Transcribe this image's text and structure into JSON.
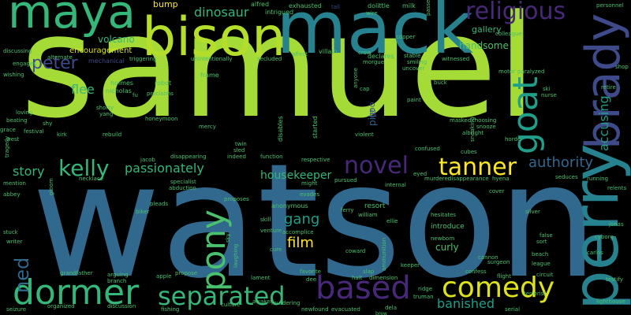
{
  "palette": {
    "lime": "#a5db36",
    "yellowgreen": "#b5de2b",
    "green": "#35b779",
    "mint": "#4ac16d",
    "teal": "#1f9e89",
    "tealblue": "#26828e",
    "blue": "#31688e",
    "indigo": "#3e4a89",
    "purple": "#482878",
    "violet": "#440154",
    "yellow": "#fde725",
    "paleyellow": "#dde318"
  },
  "words": [
    {
      "text": "samuel"
    },
    {
      "text": "watson"
    },
    {
      "text": "mack"
    },
    {
      "text": "bison"
    },
    {
      "text": "maya"
    },
    {
      "text": "perry"
    },
    {
      "text": "brady"
    },
    {
      "text": "dormer"
    },
    {
      "text": "based"
    },
    {
      "text": "comedy"
    },
    {
      "text": "separated"
    },
    {
      "text": "religious"
    },
    {
      "text": "goat"
    },
    {
      "text": "pony"
    },
    {
      "text": "novel"
    },
    {
      "text": "tanner"
    },
    {
      "text": "kelly"
    },
    {
      "text": "passionately"
    },
    {
      "text": "peter"
    },
    {
      "text": "authority"
    },
    {
      "text": "ned"
    },
    {
      "text": "story"
    },
    {
      "text": "housekeeper"
    },
    {
      "text": "gang"
    },
    {
      "text": "film"
    },
    {
      "text": "banished"
    },
    {
      "text": "accusing"
    },
    {
      "text": "dinosaur"
    },
    {
      "text": "flee"
    },
    {
      "text": "volcano"
    },
    {
      "text": "pile"
    },
    {
      "text": "gallery"
    },
    {
      "text": "handsome"
    },
    {
      "text": "encouragement"
    },
    {
      "text": "curly"
    },
    {
      "text": "introduce"
    },
    {
      "text": "bump"
    },
    {
      "text": "anonymous"
    },
    {
      "text": "resort"
    },
    {
      "text": "mechanical"
    },
    {
      "text": "holmes"
    },
    {
      "text": "nicholas"
    },
    {
      "text": "robot"
    },
    {
      "text": "frame"
    },
    {
      "text": "alfred"
    },
    {
      "text": "exhausted"
    },
    {
      "text": "tall"
    },
    {
      "text": "dolittle"
    },
    {
      "text": "milk"
    },
    {
      "text": "intrigued"
    },
    {
      "text": "wire"
    },
    {
      "text": "copper"
    },
    {
      "text": "colleague"
    },
    {
      "text": "personnel"
    },
    {
      "text": "stable"
    },
    {
      "text": "declares"
    },
    {
      "text": "villain"
    },
    {
      "text": "affect"
    },
    {
      "text": "secluded"
    },
    {
      "text": "triggering"
    },
    {
      "text": "unintentionally"
    },
    {
      "text": "discussing"
    },
    {
      "text": "engages"
    },
    {
      "text": "alternate"
    },
    {
      "text": "wishing"
    },
    {
      "text": "witnessed"
    },
    {
      "text": "uncover"
    },
    {
      "text": "motor"
    },
    {
      "text": "paralyzed"
    },
    {
      "text": "retire"
    },
    {
      "text": "shop"
    },
    {
      "text": "ski"
    },
    {
      "text": "buck"
    },
    {
      "text": "paint"
    },
    {
      "text": "masked"
    },
    {
      "text": "choosing"
    },
    {
      "text": "snooze"
    },
    {
      "text": "albright"
    },
    {
      "text": "horde"
    },
    {
      "text": "loving"
    },
    {
      "text": "beating"
    },
    {
      "text": "shy"
    },
    {
      "text": "festival"
    },
    {
      "text": "grace"
    },
    {
      "text": "shorty"
    },
    {
      "text": "yang"
    },
    {
      "text": "proclaims"
    },
    {
      "text": "rebuild"
    },
    {
      "text": "honeymoon"
    },
    {
      "text": "mercy"
    },
    {
      "text": "started"
    },
    {
      "text": "disables"
    },
    {
      "text": "confused"
    },
    {
      "text": "goo"
    },
    {
      "text": "jacob"
    },
    {
      "text": "disappearing"
    },
    {
      "text": "indeed"
    },
    {
      "text": "function"
    },
    {
      "text": "respective"
    },
    {
      "text": "specialist"
    },
    {
      "text": "abduction"
    },
    {
      "text": "twin"
    },
    {
      "text": "sled"
    },
    {
      "text": "mention"
    },
    {
      "text": "tragedy"
    },
    {
      "text": "abbey"
    },
    {
      "text": "necklace"
    },
    {
      "text": "pleads"
    },
    {
      "text": "biker"
    },
    {
      "text": "proposes"
    },
    {
      "text": "evades"
    },
    {
      "text": "might"
    },
    {
      "text": "pursued"
    },
    {
      "text": "internal"
    },
    {
      "text": "murderer"
    },
    {
      "text": "disappearance"
    },
    {
      "text": "hyena"
    },
    {
      "text": "seduces"
    },
    {
      "text": "running"
    },
    {
      "text": "relents"
    },
    {
      "text": "cover"
    },
    {
      "text": "silver"
    },
    {
      "text": "ferry"
    },
    {
      "text": "william"
    },
    {
      "text": "ellie"
    },
    {
      "text": "hesitates"
    },
    {
      "text": "newborn"
    },
    {
      "text": "sort"
    },
    {
      "text": "false"
    },
    {
      "text": "cyborg"
    },
    {
      "text": "jonas"
    },
    {
      "text": "beach"
    },
    {
      "text": "carlos"
    },
    {
      "text": "stuck"
    },
    {
      "text": "writer"
    },
    {
      "text": "grandfather"
    },
    {
      "text": "arguing"
    },
    {
      "text": "branch"
    },
    {
      "text": "apple"
    },
    {
      "text": "propose"
    },
    {
      "text": "lament"
    },
    {
      "text": "favorite"
    },
    {
      "text": "dee"
    },
    {
      "text": "halt"
    },
    {
      "text": "dimension"
    },
    {
      "text": "keeper"
    },
    {
      "text": "ridge"
    },
    {
      "text": "truman"
    },
    {
      "text": "confess"
    },
    {
      "text": "flight"
    },
    {
      "text": "circuit"
    },
    {
      "text": "terrorist"
    },
    {
      "text": "testify"
    },
    {
      "text": "lighthouse"
    },
    {
      "text": "surgeon"
    },
    {
      "text": "seizure"
    },
    {
      "text": "organized"
    },
    {
      "text": "discussion"
    },
    {
      "text": "fishing"
    },
    {
      "text": "culture"
    },
    {
      "text": "awaken"
    },
    {
      "text": "murdering"
    },
    {
      "text": "newfound"
    },
    {
      "text": "evacuated"
    },
    {
      "text": "serial"
    },
    {
      "text": "venture"
    },
    {
      "text": "accomplice"
    },
    {
      "text": "cure"
    },
    {
      "text": "coward"
    },
    {
      "text": "slap"
    },
    {
      "text": "ammunition"
    },
    {
      "text": "cannon"
    },
    {
      "text": "league"
    },
    {
      "text": "laughing"
    },
    {
      "text": "gloom"
    },
    {
      "text": "skill"
    },
    {
      "text": "sky"
    },
    {
      "text": "smiling"
    },
    {
      "text": "morgue"
    },
    {
      "text": "cap"
    },
    {
      "text": "anyone"
    },
    {
      "text": "fu"
    },
    {
      "text": "kirk"
    },
    {
      "text": "west"
    },
    {
      "text": "violent"
    },
    {
      "text": "eyed"
    },
    {
      "text": "crow"
    },
    {
      "text": "nurse"
    },
    {
      "text": "passed"
    },
    {
      "text": "cubes"
    },
    {
      "text": "sneaking"
    },
    {
      "text": "dela"
    },
    {
      "text": "brew"
    }
  ]
}
